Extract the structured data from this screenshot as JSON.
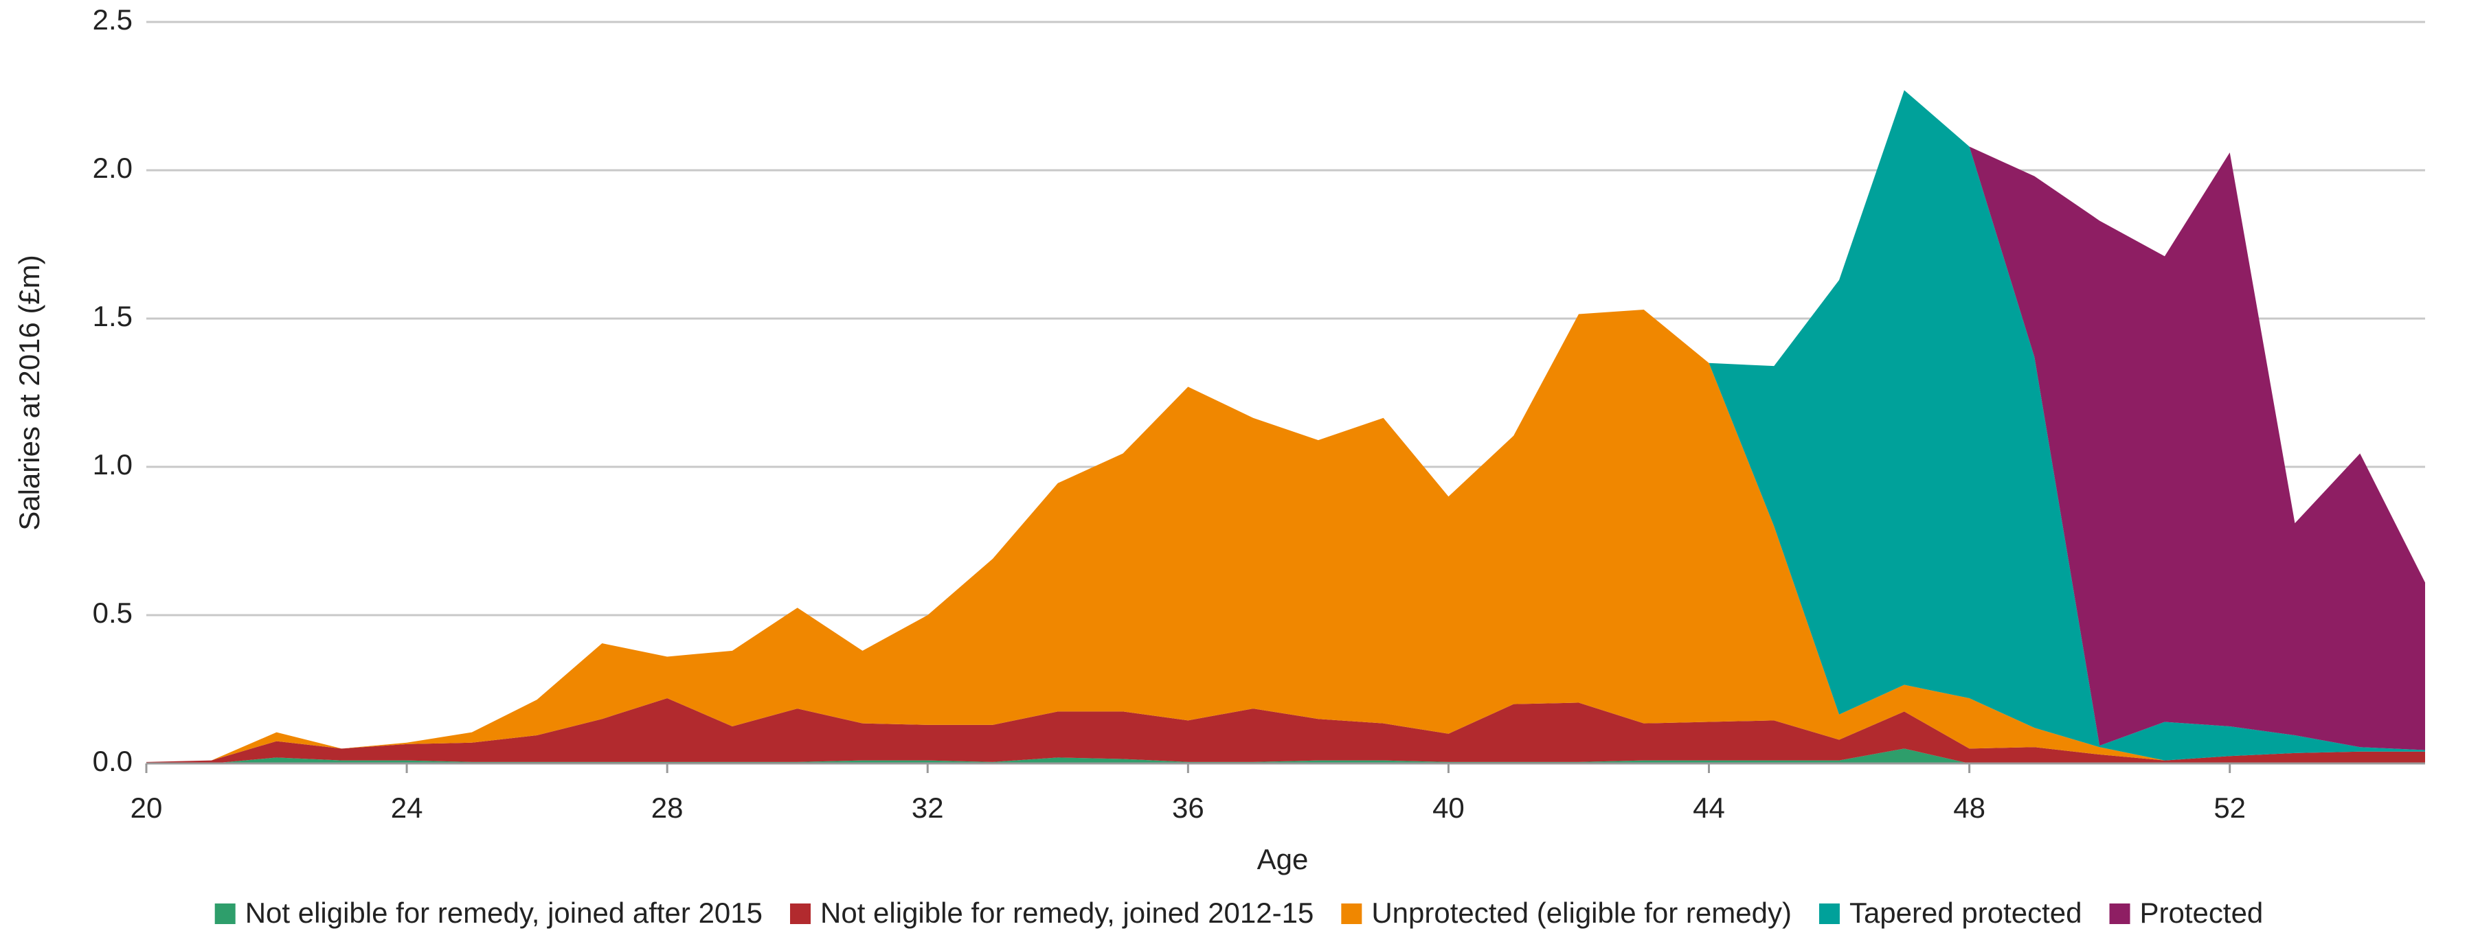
{
  "chart_data": {
    "type": "stacked_area",
    "x_label": "Age",
    "y_label": "Salaries at 2016 (£m)",
    "x": [
      20,
      21,
      22,
      23,
      24,
      25,
      26,
      27,
      28,
      29,
      30,
      31,
      32,
      33,
      34,
      35,
      36,
      37,
      38,
      39,
      40,
      41,
      42,
      43,
      44,
      45,
      46,
      47,
      48,
      49,
      50,
      51,
      52,
      53,
      54,
      55
    ],
    "series": [
      {
        "name": "Not eligible for remedy, joined after 2015",
        "color": "#2e9e6b",
        "values": [
          0,
          0,
          0.02,
          0.01,
          0.01,
          0.005,
          0.005,
          0.005,
          0.005,
          0.005,
          0.005,
          0.01,
          0.01,
          0.005,
          0.02,
          0.015,
          0.005,
          0.005,
          0.01,
          0.01,
          0.005,
          0.005,
          0.005,
          0.01,
          0.01,
          0.01,
          0.01,
          0.05,
          0,
          0,
          0,
          0,
          0,
          0,
          0,
          0
        ]
      },
      {
        "name": "Not eligible for remedy, joined 2012-15",
        "color": "#b22a2e",
        "values": [
          0.005,
          0.01,
          0.055,
          0.04,
          0.055,
          0.065,
          0.09,
          0.145,
          0.215,
          0.12,
          0.18,
          0.125,
          0.12,
          0.125,
          0.155,
          0.16,
          0.14,
          0.18,
          0.14,
          0.125,
          0.095,
          0.195,
          0.2,
          0.125,
          0.13,
          0.135,
          0.07,
          0.125,
          0.05,
          0.055,
          0.03,
          0.01,
          0.025,
          0.035,
          0.04,
          0.04
        ]
      },
      {
        "name": "Unprotected (eligible for remedy)",
        "color": "#f08700",
        "values": [
          0,
          0,
          0.03,
          0,
          0.005,
          0.035,
          0.12,
          0.255,
          0.14,
          0.255,
          0.34,
          0.245,
          0.37,
          0.56,
          0.77,
          0.87,
          1.125,
          0.98,
          0.94,
          1.03,
          0.8,
          0.905,
          1.31,
          1.395,
          1.21,
          0.655,
          0.085,
          0.09,
          0.17,
          0.065,
          0.025,
          0,
          0,
          0,
          0,
          0
        ]
      },
      {
        "name": "Tapered protected",
        "color": "#00a19a",
        "values": [
          0,
          0,
          0,
          0,
          0,
          0,
          0,
          0,
          0,
          0,
          0,
          0,
          0,
          0,
          0,
          0,
          0,
          0,
          0,
          0,
          0,
          0,
          0,
          0,
          0,
          0.54,
          1.465,
          2.005,
          1.86,
          1.25,
          0.005,
          0.13,
          0.1,
          0.06,
          0.015,
          0.005
        ]
      },
      {
        "name": "Protected",
        "color": "#8e1e63",
        "values": [
          0,
          0,
          0,
          0,
          0,
          0,
          0,
          0,
          0,
          0,
          0,
          0,
          0,
          0,
          0,
          0,
          0,
          0,
          0,
          0,
          0,
          0,
          0,
          0,
          0,
          0,
          0,
          0,
          0,
          0.61,
          1.77,
          1.57,
          1.935,
          0.715,
          0.99,
          0.565
        ]
      }
    ],
    "xlim": [
      20,
      55
    ],
    "xticks": [
      20,
      24,
      28,
      32,
      36,
      40,
      44,
      48,
      52
    ],
    "ylim": [
      0,
      2.5
    ],
    "yticks": [
      {
        "value": 0,
        "label": "0.0"
      },
      0.5,
      {
        "value": 1,
        "label": "1.0"
      },
      1.5,
      {
        "value": 2,
        "label": "2.0"
      },
      2.5
    ],
    "grid": true,
    "legend": "bottom"
  }
}
